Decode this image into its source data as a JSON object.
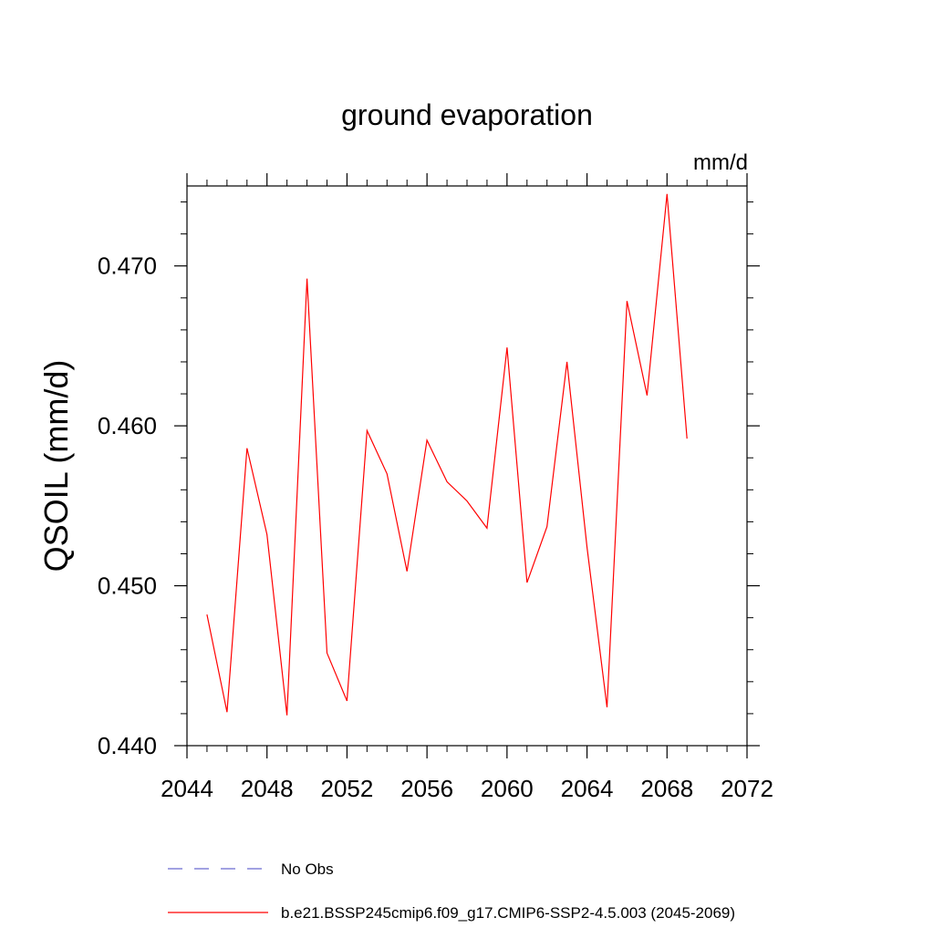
{
  "chart_data": {
    "type": "line",
    "title": "ground evaporation",
    "units_label": "mm/d",
    "ylabel": "QSOIL  (mm/d)",
    "xlabel": "",
    "xlim": [
      2044,
      2072
    ],
    "ylim": [
      0.44,
      0.475
    ],
    "x_ticks": [
      2044,
      2048,
      2052,
      2056,
      2060,
      2064,
      2068,
      2072
    ],
    "x_tick_labels": [
      "2044",
      "2048",
      "2052",
      "2056",
      "2060",
      "2064",
      "2068",
      "2072"
    ],
    "y_ticks": [
      0.44,
      0.45,
      0.46,
      0.47
    ],
    "y_tick_labels": [
      "0.440",
      "0.450",
      "0.460",
      "0.470"
    ],
    "grid": false,
    "series": [
      {
        "name": "b.e21.BSSP245cmip6.f09_g17.CMIP6-SSP2-4.5.003 (2045-2069)",
        "color": "#ff0000",
        "dash": "solid",
        "x": [
          2045,
          2046,
          2047,
          2048,
          2049,
          2050,
          2051,
          2052,
          2053,
          2054,
          2055,
          2056,
          2057,
          2058,
          2059,
          2060,
          2061,
          2062,
          2063,
          2064,
          2065,
          2066,
          2067,
          2068,
          2069
        ],
        "values": [
          0.4482,
          0.4421,
          0.4586,
          0.4532,
          0.4419,
          0.4692,
          0.4458,
          0.4428,
          0.4597,
          0.457,
          0.4509,
          0.4591,
          0.4565,
          0.4553,
          0.4536,
          0.4649,
          0.4502,
          0.4537,
          0.464,
          0.4524,
          0.4424,
          0.4678,
          0.4619,
          0.4745,
          0.4592
        ]
      }
    ],
    "legend": {
      "placement": "bottom",
      "entries": [
        {
          "label": "No Obs",
          "color": "#6a6ad0",
          "dash": "dashed"
        },
        {
          "label": "b.e21.BSSP245cmip6.f09_g17.CMIP6-SSP2-4.5.003 (2045-2069)",
          "color": "#ff0000",
          "dash": "solid"
        }
      ]
    }
  }
}
